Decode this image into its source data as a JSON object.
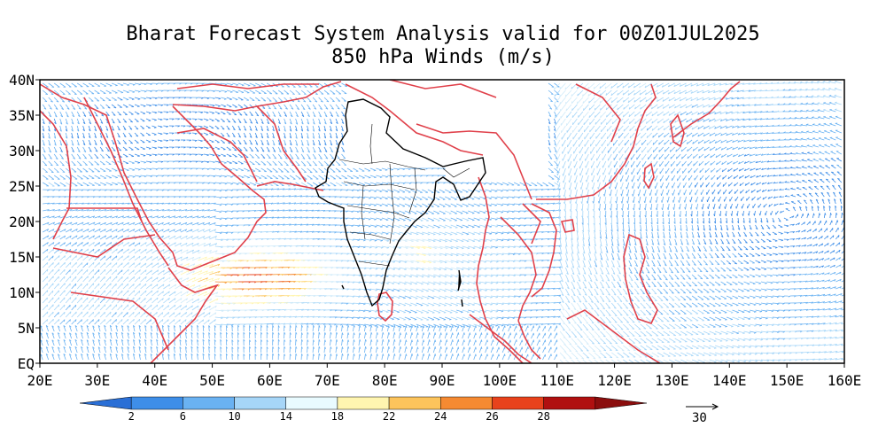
{
  "title": {
    "line1": "Bharat Forecast System Analysis valid for 00Z01JUL2025",
    "line2": "850 hPa Winds (m/s)"
  },
  "map": {
    "lon_range": [
      20,
      160
    ],
    "lat_range": [
      0,
      40
    ],
    "x_ticks": [
      "20E",
      "30E",
      "40E",
      "50E",
      "60E",
      "70E",
      "80E",
      "90E",
      "100E",
      "110E",
      "120E",
      "130E",
      "140E",
      "150E",
      "160E"
    ],
    "y_ticks": [
      "EQ",
      "5N",
      "10N",
      "15N",
      "20N",
      "25N",
      "30N",
      "35N",
      "40N"
    ],
    "coastline_color": "#e0404a",
    "india_border_color": "#000000"
  },
  "colorbar": {
    "levels": [
      "2",
      "6",
      "10",
      "14",
      "18",
      "22",
      "24",
      "26",
      "28"
    ],
    "colors": [
      "#2a6fd6",
      "#3e8ee8",
      "#6ab2f2",
      "#a6d6f8",
      "#e9fbff",
      "#fff5b0",
      "#fcc45c",
      "#f58a32",
      "#e8421c",
      "#b01010",
      "#8b0d0d"
    ]
  },
  "reference_vector": {
    "label": "30"
  }
}
